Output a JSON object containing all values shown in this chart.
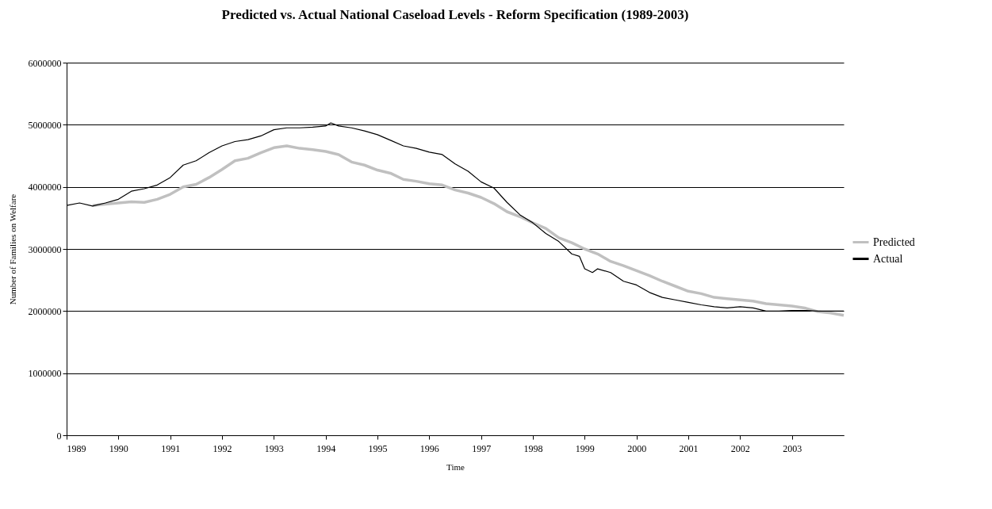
{
  "chart_data": {
    "type": "line",
    "title": "Predicted vs. Actual National Caseload Levels - Reform Specification (1989-2003)",
    "xlabel": "Time",
    "ylabel": "Number of Families on Welfare",
    "xlim": [
      1989,
      2004
    ],
    "xticks": [
      1989,
      1990,
      1991,
      1992,
      1993,
      1994,
      1995,
      1996,
      1997,
      1998,
      1999,
      2000,
      2001,
      2002,
      2003
    ],
    "ylim": [
      0,
      6000000
    ],
    "yticks": [
      0,
      1000000,
      2000000,
      3000000,
      4000000,
      5000000,
      6000000
    ],
    "grid": "y",
    "legend": "right",
    "series": [
      {
        "name": "Predicted",
        "color": "#c0c0c0",
        "x": [
          1989.5,
          1989.75,
          1990,
          1990.25,
          1990.5,
          1990.75,
          1991,
          1991.25,
          1991.5,
          1991.75,
          1992,
          1992.25,
          1992.5,
          1992.75,
          1993,
          1993.25,
          1993.5,
          1993.75,
          1994,
          1994.25,
          1994.5,
          1994.75,
          1995,
          1995.25,
          1995.5,
          1995.75,
          1996,
          1996.25,
          1996.5,
          1996.75,
          1997,
          1997.25,
          1997.5,
          1997.75,
          1998,
          1998.25,
          1998.5,
          1998.75,
          1999,
          1999.25,
          1999.5,
          1999.75,
          2000,
          2000.25,
          2000.5,
          2000.75,
          2001,
          2001.25,
          2001.5,
          2001.75,
          2002,
          2002.25,
          2002.5,
          2002.75,
          2003,
          2003.25,
          2003.5,
          2003.75,
          2004
        ],
        "values": [
          3700000,
          3720000,
          3740000,
          3760000,
          3750000,
          3800000,
          3880000,
          4000000,
          4040000,
          4150000,
          4280000,
          4420000,
          4460000,
          4550000,
          4630000,
          4660000,
          4620000,
          4600000,
          4570000,
          4520000,
          4400000,
          4350000,
          4270000,
          4220000,
          4120000,
          4090000,
          4050000,
          4030000,
          3950000,
          3900000,
          3830000,
          3730000,
          3600000,
          3520000,
          3420000,
          3330000,
          3180000,
          3100000,
          3000000,
          2920000,
          2800000,
          2730000,
          2650000,
          2570000,
          2480000,
          2400000,
          2320000,
          2280000,
          2220000,
          2200000,
          2180000,
          2160000,
          2120000,
          2100000,
          2080000,
          2050000,
          1990000,
          1970000,
          1930000
        ]
      },
      {
        "name": "Actual",
        "color": "#000000",
        "x": [
          1989,
          1989.25,
          1989.5,
          1989.75,
          1990,
          1990.25,
          1990.5,
          1990.75,
          1991,
          1991.25,
          1991.5,
          1991.75,
          1992,
          1992.25,
          1992.5,
          1992.75,
          1993,
          1993.25,
          1993.5,
          1993.75,
          1994,
          1994.1,
          1994.25,
          1994.5,
          1994.75,
          1995,
          1995.25,
          1995.5,
          1995.75,
          1996,
          1996.25,
          1996.5,
          1996.75,
          1997,
          1997.25,
          1997.5,
          1997.75,
          1998,
          1998.25,
          1998.5,
          1998.75,
          1998.9,
          1999,
          1999.15,
          1999.25,
          1999.5,
          1999.75,
          2000,
          2000.25,
          2000.5,
          2000.75,
          2001,
          2001.25,
          2001.5,
          2001.75,
          2002,
          2002.25,
          2002.5,
          2002.75,
          2003,
          2003.25,
          2003.5,
          2003.75,
          2004
        ],
        "values": [
          3700000,
          3740000,
          3690000,
          3740000,
          3800000,
          3930000,
          3970000,
          4030000,
          4150000,
          4350000,
          4420000,
          4550000,
          4660000,
          4730000,
          4760000,
          4820000,
          4920000,
          4950000,
          4950000,
          4960000,
          4980000,
          5030000,
          4980000,
          4950000,
          4900000,
          4840000,
          4750000,
          4660000,
          4620000,
          4560000,
          4520000,
          4370000,
          4250000,
          4080000,
          3980000,
          3750000,
          3550000,
          3420000,
          3250000,
          3120000,
          2920000,
          2880000,
          2680000,
          2620000,
          2680000,
          2620000,
          2480000,
          2420000,
          2300000,
          2220000,
          2180000,
          2140000,
          2100000,
          2070000,
          2050000,
          2070000,
          2050000,
          2000000,
          2000000,
          2010000,
          2010000,
          2000000,
          2000000,
          2000000
        ]
      }
    ]
  }
}
